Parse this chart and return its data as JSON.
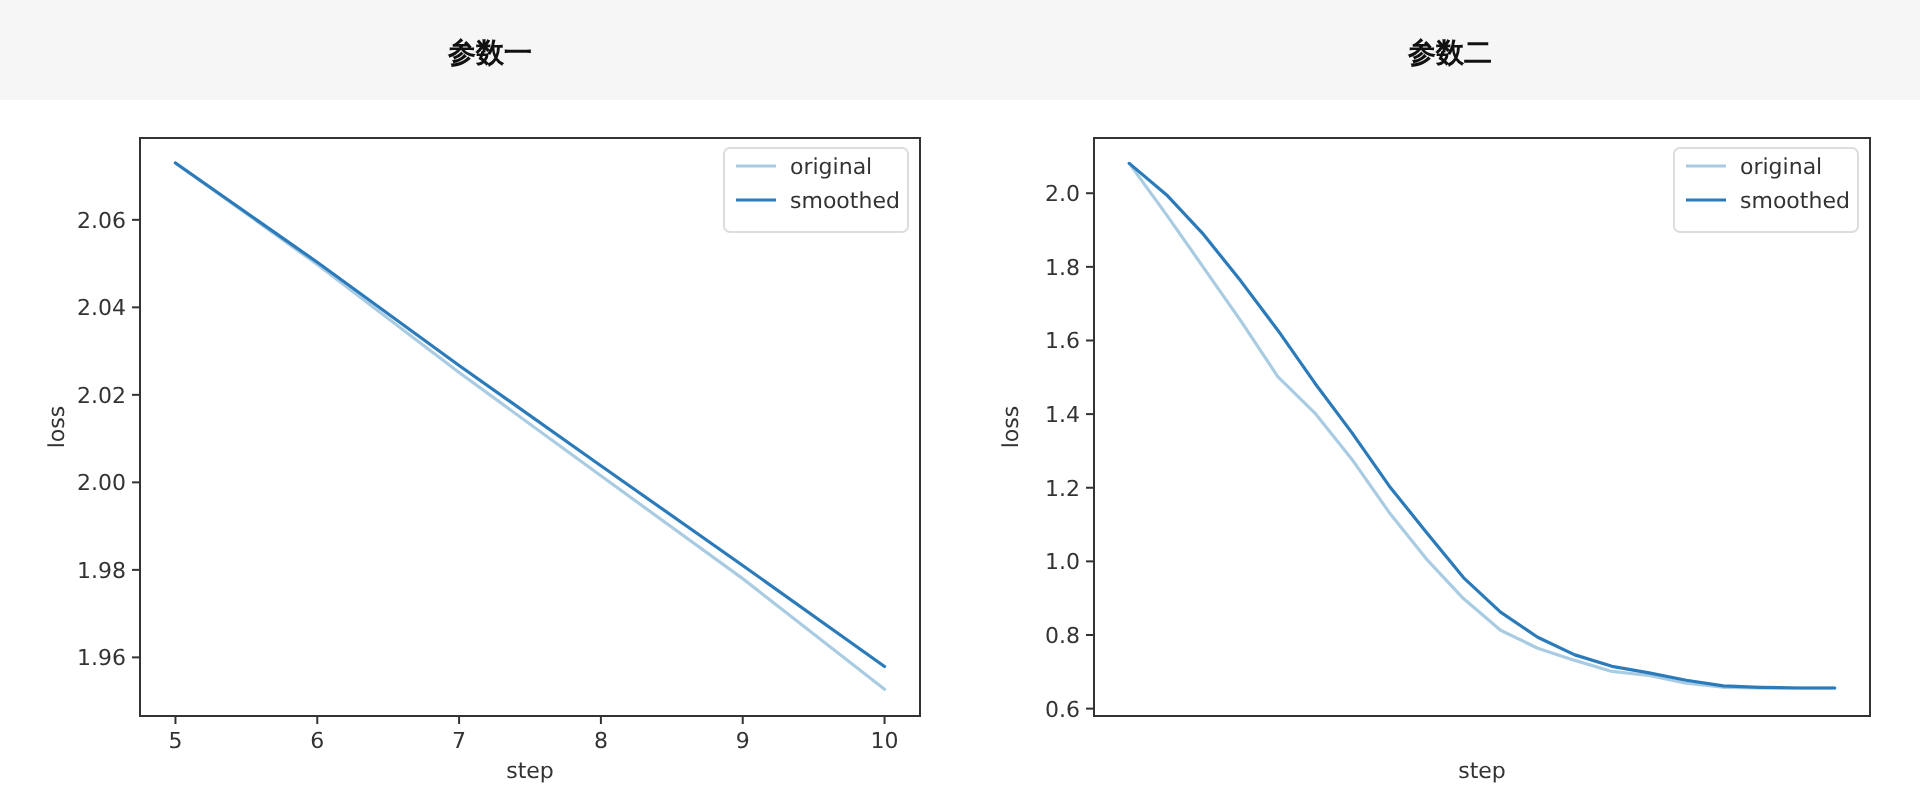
{
  "chart_data": [
    {
      "type": "line",
      "title": "参数一",
      "xlabel": "step",
      "ylabel": "loss",
      "x": [
        5,
        6,
        7,
        8,
        9,
        10
      ],
      "xlim": [
        4.75,
        10.25
      ],
      "xticks": [
        5,
        6,
        7,
        8,
        9,
        10
      ],
      "ylim": [
        1.9466,
        2.0787
      ],
      "yticks": [
        {
          "value": 1.96,
          "label": "1.96"
        },
        {
          "value": 1.98,
          "label": "1.98"
        },
        {
          "value": 2.0,
          "label": "2.00"
        },
        {
          "value": 2.02,
          "label": "2.02"
        },
        {
          "value": 2.04,
          "label": "2.04"
        },
        {
          "value": 2.06,
          "label": "2.06"
        }
      ],
      "legend": "top right",
      "grid": false,
      "series": [
        {
          "name": "original",
          "color": "#a9cce3",
          "values": [
            2.073,
            2.0498,
            2.0251,
            2.0015,
            1.978,
            1.9527
          ]
        },
        {
          "name": "smoothed",
          "color": "#2b7bba",
          "values": [
            2.073,
            2.0503,
            2.0267,
            2.0038,
            1.981,
            1.9579
          ]
        }
      ]
    },
    {
      "type": "line",
      "title": "参数二",
      "xlabel": "step",
      "ylabel": "loss",
      "categories": [
        null,
        null,
        null,
        null,
        null,
        null,
        null,
        null,
        null,
        null,
        null,
        null,
        null,
        null,
        null,
        null,
        null,
        null,
        null,
        null
      ],
      "ylim": [
        0.58,
        2.15
      ],
      "yticks": [
        {
          "value": 0.6,
          "label": "0.6"
        },
        {
          "value": 0.8,
          "label": "0.8"
        },
        {
          "value": 1.0,
          "label": "1.0"
        },
        {
          "value": 1.2,
          "label": "1.2"
        },
        {
          "value": 1.4,
          "label": "1.4"
        },
        {
          "value": 1.6,
          "label": "1.6"
        },
        {
          "value": 1.8,
          "label": "1.8"
        },
        {
          "value": 2.0,
          "label": "2.0"
        }
      ],
      "legend": "top right",
      "grid": false,
      "series": [
        {
          "name": "original",
          "color": "#a9cce3",
          "values": [
            2.081,
            1.942,
            1.798,
            1.654,
            1.502,
            1.403,
            1.277,
            1.133,
            1.007,
            0.899,
            0.813,
            0.764,
            0.731,
            0.701,
            0.69,
            0.669,
            0.658,
            0.656,
            0.656,
            0.656
          ]
        },
        {
          "name": "smoothed",
          "color": "#2b7bba",
          "values": [
            2.081,
            1.996,
            1.888,
            1.762,
            1.628,
            1.484,
            1.349,
            1.205,
            1.079,
            0.956,
            0.862,
            0.794,
            0.746,
            0.715,
            0.697,
            0.677,
            0.662,
            0.658,
            0.656,
            0.656
          ]
        }
      ]
    }
  ]
}
